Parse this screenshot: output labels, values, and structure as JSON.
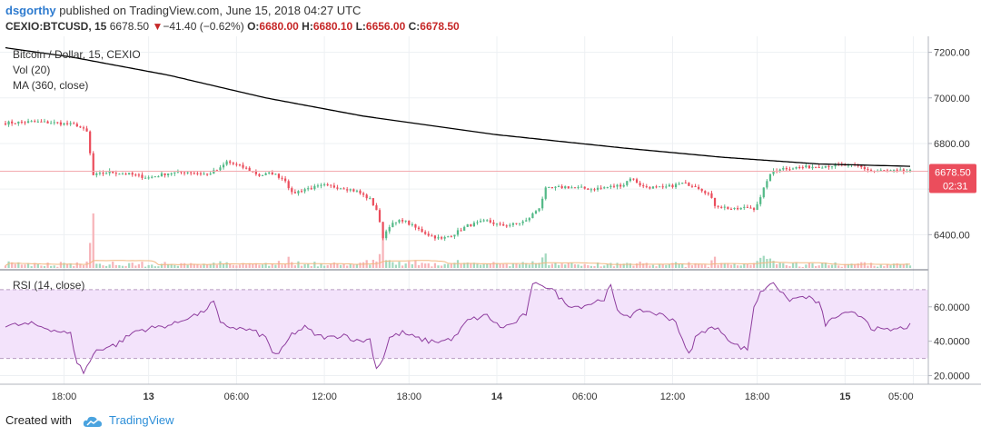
{
  "header": {
    "author": "dsgorthy",
    "published_text": "published on TradingView.com, June 15, 2018 04:27 UTC",
    "symbol": "CEXIO:BTCUSD, 15",
    "last": "6678.50",
    "change_arrow": "▼",
    "change": "−41.40 (−0.62%)",
    "o_label": "O:",
    "o_value": "6680.00",
    "h_label": "H:",
    "h_value": "6680.10",
    "l_label": "L:",
    "l_value": "6656.00",
    "c_label": "C:",
    "c_value": "6678.50"
  },
  "legend": {
    "line1": "Bitcoin / Dollar, 15, CEXIO",
    "line2": "Vol (20)",
    "line3": "MA (360, close)"
  },
  "rsi": {
    "label": "RSI (14, close)"
  },
  "price_badge": {
    "price": "6678.50",
    "countdown": "02:31"
  },
  "colors": {
    "up": "#53b987",
    "down": "#eb4d5c",
    "ma": "#000000",
    "rsi_line": "#8e3d9e",
    "rsi_band": "#f3e3fb",
    "vol_up": "#a3d9bf",
    "vol_down": "#f7b4b9",
    "vol_ma": "#f2b880",
    "price_line": "#f2a9ae",
    "badge": "#eb4d5c",
    "accent": "#2e8fd8"
  },
  "footer": {
    "created_with": "Created with",
    "brand": "TradingView",
    "icon": "cloud-logo-icon"
  },
  "chart_data": [
    {
      "type": "candlestick",
      "title": "Bitcoin / Dollar, 15, CEXIO",
      "x_ticks": [
        "18:00",
        "13",
        "06:00",
        "12:00",
        "18:00",
        "14",
        "06:00",
        "12:00",
        "18:00",
        "15",
        "05:00"
      ],
      "y_ticks": [
        "6400.00",
        "6600.00",
        "6800.00",
        "7000.00",
        "7200.00"
      ],
      "ylim": [
        6250,
        7270
      ],
      "last_price": 6678.5,
      "close_path": [
        [
          0,
          6890
        ],
        [
          8,
          6895
        ],
        [
          16,
          6890
        ],
        [
          22,
          6880
        ],
        [
          25,
          6850
        ],
        [
          27,
          6660
        ],
        [
          32,
          6675
        ],
        [
          38,
          6665
        ],
        [
          44,
          6650
        ],
        [
          50,
          6670
        ],
        [
          56,
          6675
        ],
        [
          62,
          6665
        ],
        [
          66,
          6690
        ],
        [
          68,
          6720
        ],
        [
          74,
          6690
        ],
        [
          78,
          6660
        ],
        [
          82,
          6670
        ],
        [
          86,
          6640
        ],
        [
          88,
          6580
        ],
        [
          92,
          6600
        ],
        [
          98,
          6615
        ],
        [
          104,
          6605
        ],
        [
          108,
          6590
        ],
        [
          112,
          6555
        ],
        [
          114,
          6510
        ],
        [
          116,
          6390
        ],
        [
          118,
          6440
        ],
        [
          122,
          6465
        ],
        [
          126,
          6430
        ],
        [
          130,
          6400
        ],
        [
          134,
          6380
        ],
        [
          138,
          6405
        ],
        [
          142,
          6440
        ],
        [
          148,
          6460
        ],
        [
          152,
          6440
        ],
        [
          156,
          6445
        ],
        [
          160,
          6460
        ],
        [
          164,
          6520
        ],
        [
          166,
          6600
        ],
        [
          172,
          6610
        ],
        [
          180,
          6600
        ],
        [
          186,
          6610
        ],
        [
          190,
          6620
        ],
        [
          192,
          6650
        ],
        [
          196,
          6610
        ],
        [
          202,
          6605
        ],
        [
          208,
          6625
        ],
        [
          212,
          6615
        ],
        [
          216,
          6580
        ],
        [
          218,
          6530
        ],
        [
          224,
          6510
        ],
        [
          228,
          6520
        ],
        [
          230,
          6515
        ],
        [
          232,
          6560
        ],
        [
          234,
          6640
        ],
        [
          236,
          6680
        ],
        [
          238,
          6690
        ],
        [
          244,
          6695
        ],
        [
          250,
          6700
        ],
        [
          256,
          6705
        ],
        [
          262,
          6700
        ],
        [
          266,
          6680
        ],
        [
          272,
          6680
        ],
        [
          278,
          6678
        ]
      ],
      "ma_path": [
        [
          0,
          7220
        ],
        [
          20,
          7180
        ],
        [
          50,
          7100
        ],
        [
          80,
          7000
        ],
        [
          110,
          6920
        ],
        [
          150,
          6840
        ],
        [
          190,
          6780
        ],
        [
          220,
          6740
        ],
        [
          250,
          6710
        ],
        [
          278,
          6700
        ]
      ]
    },
    {
      "type": "line",
      "title": "RSI (14, close)",
      "y_ticks": [
        "20.0000",
        "40.0000",
        "60.0000"
      ],
      "ylim": [
        15,
        81
      ],
      "bands": [
        30,
        70
      ],
      "series": [
        {
          "values": [
            [
              0,
              49
            ],
            [
              8,
              50
            ],
            [
              16,
              46
            ],
            [
              20,
              44
            ],
            [
              22,
              28
            ],
            [
              24,
              22
            ],
            [
              28,
              35
            ],
            [
              34,
              38
            ],
            [
              40,
              46
            ],
            [
              46,
              48
            ],
            [
              52,
              50
            ],
            [
              56,
              54
            ],
            [
              60,
              56
            ],
            [
              64,
              63
            ],
            [
              66,
              50
            ],
            [
              70,
              48
            ],
            [
              76,
              46
            ],
            [
              80,
              42
            ],
            [
              82,
              34
            ],
            [
              84,
              32
            ],
            [
              88,
              44
            ],
            [
              92,
              48
            ],
            [
              96,
              43
            ],
            [
              100,
              42
            ],
            [
              104,
              44
            ],
            [
              108,
              40
            ],
            [
              112,
              41
            ],
            [
              114,
              24
            ],
            [
              116,
              30
            ],
            [
              118,
              42
            ],
            [
              122,
              45
            ],
            [
              126,
              42
            ],
            [
              130,
              40
            ],
            [
              134,
              40
            ],
            [
              138,
              42
            ],
            [
              142,
              52
            ],
            [
              148,
              55
            ],
            [
              152,
              48
            ],
            [
              156,
              50
            ],
            [
              160,
              56
            ],
            [
              162,
              72
            ],
            [
              164,
              74
            ],
            [
              168,
              70
            ],
            [
              172,
              62
            ],
            [
              176,
              60
            ],
            [
              180,
              62
            ],
            [
              184,
              65
            ],
            [
              186,
              72
            ],
            [
              188,
              57
            ],
            [
              192,
              55
            ],
            [
              196,
              58
            ],
            [
              202,
              55
            ],
            [
              206,
              52
            ],
            [
              208,
              40
            ],
            [
              210,
              32
            ],
            [
              212,
              42
            ],
            [
              216,
              48
            ],
            [
              220,
              46
            ],
            [
              224,
              38
            ],
            [
              228,
              35
            ],
            [
              230,
              60
            ],
            [
              232,
              68
            ],
            [
              234,
              72
            ],
            [
              236,
              75
            ],
            [
              240,
              64
            ],
            [
              246,
              66
            ],
            [
              250,
              62
            ],
            [
              252,
              50
            ],
            [
              256,
              55
            ],
            [
              260,
              56
            ],
            [
              264,
              54
            ],
            [
              266,
              48
            ],
            [
              270,
              46
            ],
            [
              274,
              47
            ],
            [
              278,
              49
            ]
          ]
        }
      ]
    }
  ]
}
